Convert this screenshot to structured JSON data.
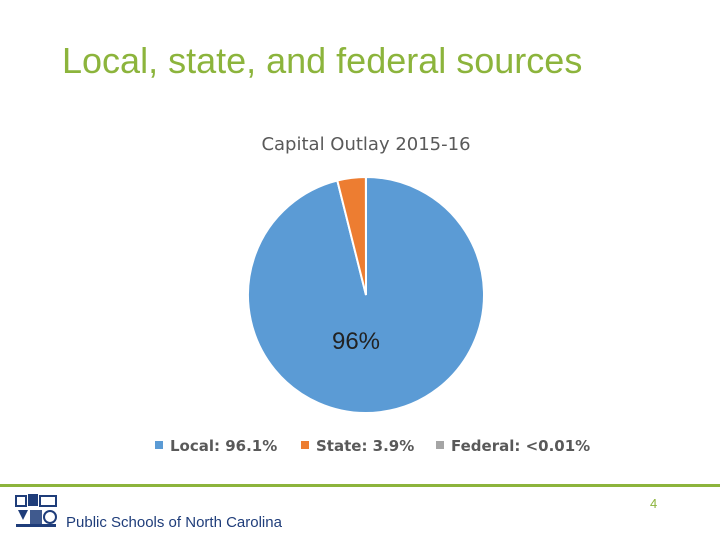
{
  "slide": {
    "title": "Local, state, and federal sources",
    "page_number": "4",
    "org_name": "Public Schools of North Carolina"
  },
  "colors": {
    "title": "#8cb43c",
    "footer_line": "#8cb43c",
    "org_text": "#1f3d7a"
  },
  "icons": {
    "logo": "nc-dpi-logo-icon"
  },
  "chart_data": {
    "type": "pie",
    "title": "Capital Outlay 2015-16",
    "slices": [
      {
        "label": "Local",
        "value": 96.1,
        "legend_text": "Local: 96.1%",
        "color": "#5b9bd5"
      },
      {
        "label": "State",
        "value": 3.9,
        "legend_text": "State: 3.9%",
        "color": "#ed7d31"
      },
      {
        "label": "Federal",
        "value": 0.01,
        "legend_text": "Federal: <0.01%",
        "color": "#a5a5a5"
      }
    ],
    "data_labels": [
      "96%"
    ],
    "legend_position": "bottom",
    "start_angle": "top, clockwise"
  }
}
